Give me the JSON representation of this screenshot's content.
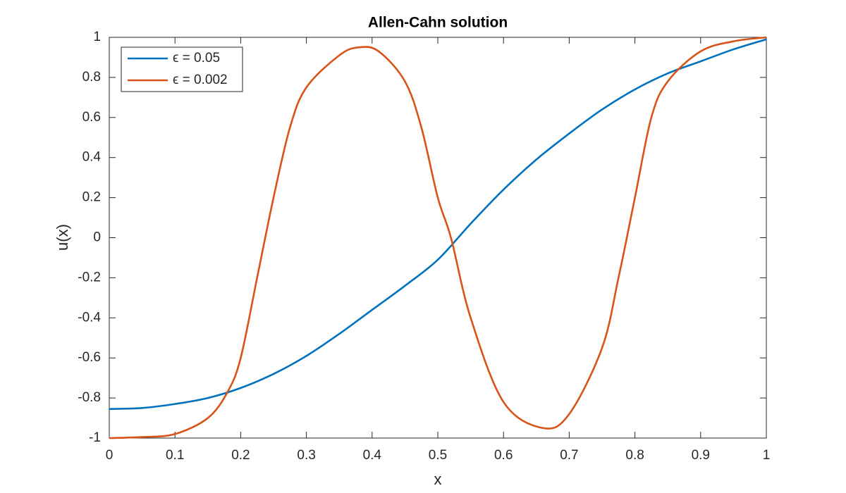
{
  "chart_data": {
    "type": "line",
    "title": "Allen-Cahn solution",
    "x_label": "x",
    "y_label": "u(x)",
    "xlim": [
      0,
      1
    ],
    "ylim": [
      -1,
      1
    ],
    "xticks": [
      0,
      0.1,
      0.2,
      0.3,
      0.4,
      0.5,
      0.6,
      0.7,
      0.8,
      0.9,
      1
    ],
    "yticks": [
      -1,
      -0.8,
      -0.6,
      -0.4,
      -0.2,
      0,
      0.2,
      0.4,
      0.6,
      0.8,
      1
    ],
    "grid": false,
    "legend_position": "upper-left",
    "series": [
      {
        "name": "ϵ = 0.05",
        "color": "#0072bd",
        "x": [
          0,
          0.05,
          0.1,
          0.15,
          0.2,
          0.25,
          0.3,
          0.35,
          0.4,
          0.45,
          0.5,
          0.55,
          0.6,
          0.65,
          0.7,
          0.75,
          0.8,
          0.85,
          0.9,
          0.95,
          1
        ],
        "values": [
          -0.855,
          -0.85,
          -0.83,
          -0.8,
          -0.75,
          -0.68,
          -0.59,
          -0.48,
          -0.36,
          -0.24,
          -0.11,
          0.07,
          0.24,
          0.39,
          0.52,
          0.64,
          0.74,
          0.82,
          0.88,
          0.94,
          0.99
        ]
      },
      {
        "name": "ϵ = 0.002",
        "color": "#d95319",
        "x": [
          0,
          0.05,
          0.1,
          0.15,
          0.18,
          0.2,
          0.225,
          0.25,
          0.275,
          0.3,
          0.35,
          0.38,
          0.41,
          0.45,
          0.475,
          0.5,
          0.52,
          0.55,
          0.6,
          0.66,
          0.7,
          0.75,
          0.775,
          0.8,
          0.825,
          0.85,
          0.9,
          0.95,
          1
        ],
        "values": [
          -1,
          -0.995,
          -0.98,
          -0.9,
          -0.77,
          -0.6,
          -0.2,
          0.2,
          0.55,
          0.75,
          0.91,
          0.95,
          0.93,
          0.78,
          0.55,
          0.2,
          0,
          -0.4,
          -0.82,
          -0.95,
          -0.88,
          -0.55,
          -0.2,
          0.2,
          0.6,
          0.78,
          0.93,
          0.98,
          1
        ]
      }
    ]
  }
}
